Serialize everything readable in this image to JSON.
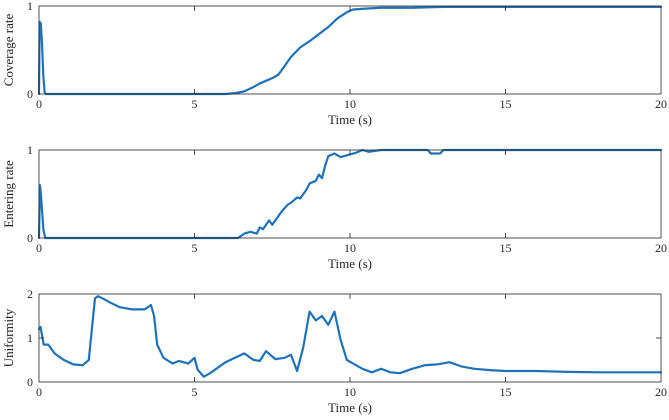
{
  "chart_data": [
    {
      "type": "line",
      "title": "",
      "xlabel": "Time (s)",
      "ylabel": "Coverage rate",
      "xlim": [
        0,
        20
      ],
      "ylim": [
        0,
        1
      ],
      "xticks": [
        0,
        5,
        10,
        15,
        20
      ],
      "yticks": [
        0,
        1
      ],
      "grid": false,
      "series": [
        {
          "name": "Coverage rate",
          "color": "#1f72b8",
          "x": [
            0,
            0.02,
            0.06,
            0.1,
            0.14,
            0.18,
            0.22,
            0.3,
            1,
            3,
            5,
            6,
            6.3,
            6.6,
            6.9,
            7.1,
            7.3,
            7.5,
            7.7,
            7.9,
            8.1,
            8.4,
            8.7,
            9,
            9.3,
            9.6,
            9.9,
            10.1,
            10.5,
            11,
            12,
            13,
            14,
            15,
            16,
            17,
            18,
            19,
            20
          ],
          "y": [
            0,
            0.82,
            0.8,
            0.55,
            0.2,
            0.02,
            0,
            0,
            0,
            0,
            0,
            0,
            0.01,
            0.03,
            0.08,
            0.12,
            0.15,
            0.18,
            0.22,
            0.32,
            0.42,
            0.53,
            0.6,
            0.68,
            0.76,
            0.86,
            0.93,
            0.96,
            0.97,
            0.98,
            0.98,
            0.99,
            0.99,
            0.99,
            0.99,
            0.99,
            0.99,
            0.99,
            0.99
          ]
        }
      ]
    },
    {
      "type": "line",
      "title": "",
      "xlabel": "Time (s)",
      "ylabel": "Entering rate",
      "xlim": [
        0,
        20
      ],
      "ylim": [
        0,
        1
      ],
      "xticks": [
        0,
        5,
        10,
        15,
        20
      ],
      "yticks": [
        0,
        1
      ],
      "grid": false,
      "series": [
        {
          "name": "Entering rate",
          "color": "#1f72b8",
          "x": [
            0,
            0.03,
            0.06,
            0.1,
            0.14,
            0.2,
            0.3,
            1,
            3,
            5,
            6,
            6.4,
            6.6,
            6.8,
            7,
            7.1,
            7.2,
            7.4,
            7.5,
            7.7,
            7.8,
            8,
            8.1,
            8.3,
            8.4,
            8.6,
            8.7,
            8.9,
            9,
            9.1,
            9.2,
            9.3,
            9.5,
            9.7,
            10,
            10.2,
            10.4,
            10.6,
            11,
            11.5,
            12,
            12.5,
            12.6,
            12.9,
            13,
            14,
            15,
            16,
            17,
            18,
            19,
            20
          ],
          "y": [
            0,
            0.6,
            0.5,
            0.3,
            0.1,
            0,
            0,
            0,
            0,
            0,
            0,
            0,
            0.05,
            0.07,
            0.05,
            0.12,
            0.1,
            0.2,
            0.15,
            0.25,
            0.3,
            0.38,
            0.4,
            0.46,
            0.45,
            0.55,
            0.62,
            0.65,
            0.72,
            0.68,
            0.82,
            0.93,
            0.96,
            0.92,
            0.95,
            0.97,
            1,
            0.98,
            1,
            1,
            1,
            1,
            0.96,
            0.96,
            1,
            1,
            1,
            1,
            1,
            1,
            1,
            1
          ]
        }
      ]
    },
    {
      "type": "line",
      "title": "",
      "xlabel": "Time (s)",
      "ylabel": "Uniformity",
      "xlim": [
        0,
        20
      ],
      "ylim": [
        0,
        2
      ],
      "xticks": [
        0,
        5,
        10,
        15,
        20
      ],
      "yticks": [
        0,
        1,
        2
      ],
      "grid": false,
      "series": [
        {
          "name": "Uniformity",
          "color": "#1f72b8",
          "x": [
            0,
            0.05,
            0.15,
            0.3,
            0.5,
            0.8,
            1.1,
            1.4,
            1.6,
            1.7,
            1.8,
            1.9,
            2.1,
            2.3,
            2.6,
            3,
            3.4,
            3.6,
            3.7,
            3.8,
            4,
            4.3,
            4.5,
            4.8,
            5,
            5.1,
            5.3,
            5.5,
            5.7,
            6,
            6.3,
            6.6,
            6.9,
            7.1,
            7.3,
            7.6,
            7.9,
            8.1,
            8.3,
            8.5,
            8.7,
            8.9,
            9.1,
            9.3,
            9.5,
            9.7,
            9.9,
            10.1,
            10.4,
            10.7,
            11,
            11.3,
            11.6,
            12,
            12.4,
            12.8,
            13.2,
            13.6,
            14,
            14.5,
            15,
            16,
            17,
            18,
            19,
            20
          ],
          "y": [
            1.2,
            1.25,
            0.85,
            0.85,
            0.65,
            0.5,
            0.4,
            0.38,
            0.5,
            1.2,
            1.9,
            1.95,
            1.88,
            1.8,
            1.7,
            1.65,
            1.65,
            1.75,
            1.5,
            0.85,
            0.55,
            0.42,
            0.48,
            0.42,
            0.55,
            0.28,
            0.12,
            0.2,
            0.3,
            0.45,
            0.55,
            0.65,
            0.5,
            0.48,
            0.7,
            0.52,
            0.55,
            0.62,
            0.25,
            0.8,
            1.6,
            1.4,
            1.5,
            1.3,
            1.6,
            0.95,
            0.5,
            0.42,
            0.3,
            0.22,
            0.3,
            0.22,
            0.2,
            0.3,
            0.38,
            0.4,
            0.45,
            0.35,
            0.3,
            0.27,
            0.25,
            0.25,
            0.23,
            0.22,
            0.22,
            0.22
          ]
        }
      ]
    }
  ]
}
